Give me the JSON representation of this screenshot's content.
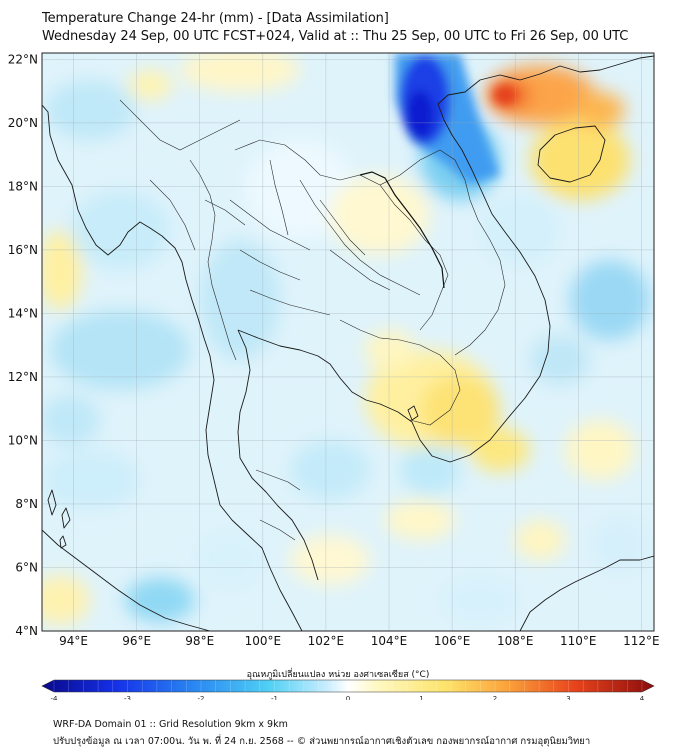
{
  "title": {
    "line1": "Temperature Change 24-hr (mm) - [Data Assimilation]",
    "line2": "Wednesday 24 Sep, 00 UTC FCST+024, Valid at :: Thu 25 Sep, 00 UTC to Fri 26 Sep, 00 UTC"
  },
  "map": {
    "lat_labels": [
      "22°N",
      "20°N",
      "18°N",
      "16°N",
      "14°N",
      "12°N",
      "10°N",
      "8°N",
      "6°N",
      "4°N"
    ],
    "lon_labels": [
      "94°E",
      "96°E",
      "98°E",
      "100°E",
      "102°E",
      "104°E",
      "106°E",
      "108°E",
      "110°E",
      "112°E"
    ],
    "lat_range": [
      4,
      22.2
    ],
    "lon_range": [
      93,
      112.4
    ]
  },
  "colorbar": {
    "label": "อุณหภูมิเปลี่ยนแปลง หน่วย องศาเซลเซียส (°C)",
    "ticks": [
      "-4",
      "-3",
      "-2",
      "-1",
      "0",
      "1",
      "2",
      "3",
      "4"
    ],
    "range": [
      -4,
      4
    ]
  },
  "footer": {
    "line1": "WRF-DA Domain 01 :: Grid Resolution 9km x 9km",
    "line2": "ปรับปรุงข้อมูล ณ เวลา 07:00น. วัน พ. ที่ 24 ก.ย. 2568 -- © ส่วนพยากรณ์อากาศเชิงตัวเลข กองพยากรณ์อากาศ กรมอุตุนิยมวิทยา"
  },
  "colors": {
    "warm_max": "#d7191c",
    "warm": "#fdae61",
    "warm_light": "#fff2a8",
    "neutral": "#f4fbff",
    "cool_light": "#c6ecfa",
    "cool": "#4cc6f0",
    "cool_max": "#0a1fd0",
    "coastline": "#1a1a1a"
  }
}
